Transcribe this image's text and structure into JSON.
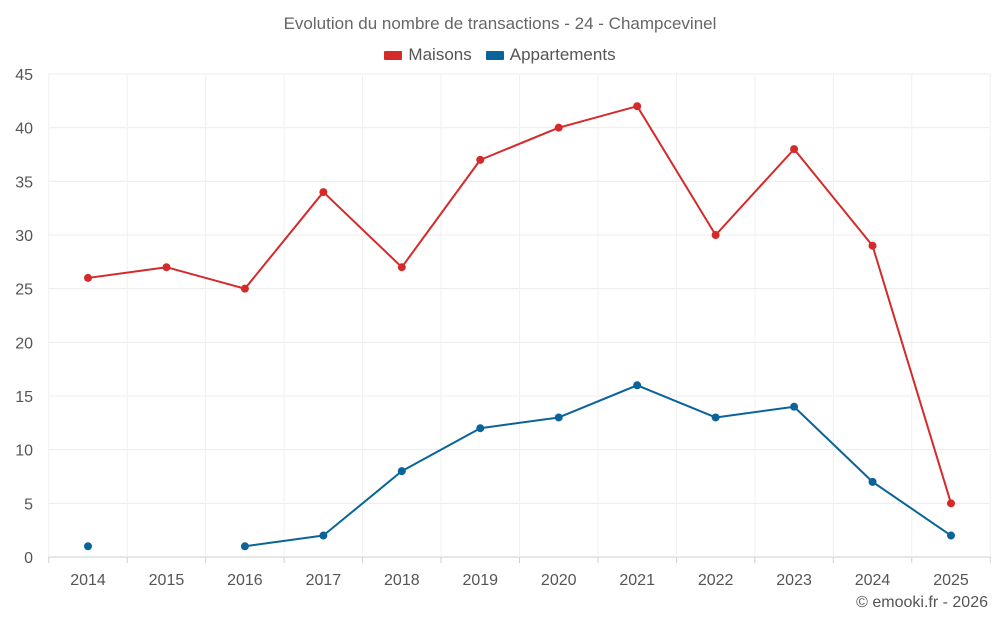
{
  "chart_data": {
    "type": "line",
    "title": "Evolution du nombre de transactions - 24 - Champcevinel",
    "categories": [
      "2014",
      "2015",
      "2016",
      "2017",
      "2018",
      "2019",
      "2020",
      "2021",
      "2022",
      "2023",
      "2024",
      "2025"
    ],
    "series": [
      {
        "name": "Maisons",
        "color": "#d42a2a",
        "values": [
          26,
          27,
          25,
          34,
          27,
          37,
          40,
          42,
          30,
          38,
          29,
          5
        ]
      },
      {
        "name": "Appartements",
        "color": "#0a6499",
        "values": [
          1,
          null,
          1,
          2,
          8,
          12,
          13,
          16,
          13,
          14,
          7,
          2
        ]
      }
    ],
    "ylim": [
      0,
      45
    ],
    "yticks": [
      0,
      5,
      10,
      15,
      20,
      25,
      30,
      35,
      40,
      45
    ],
    "xlabel": "",
    "ylabel": "",
    "grid": true,
    "legend_position": "top-center"
  },
  "credit": "© emooki.fr - 2026"
}
